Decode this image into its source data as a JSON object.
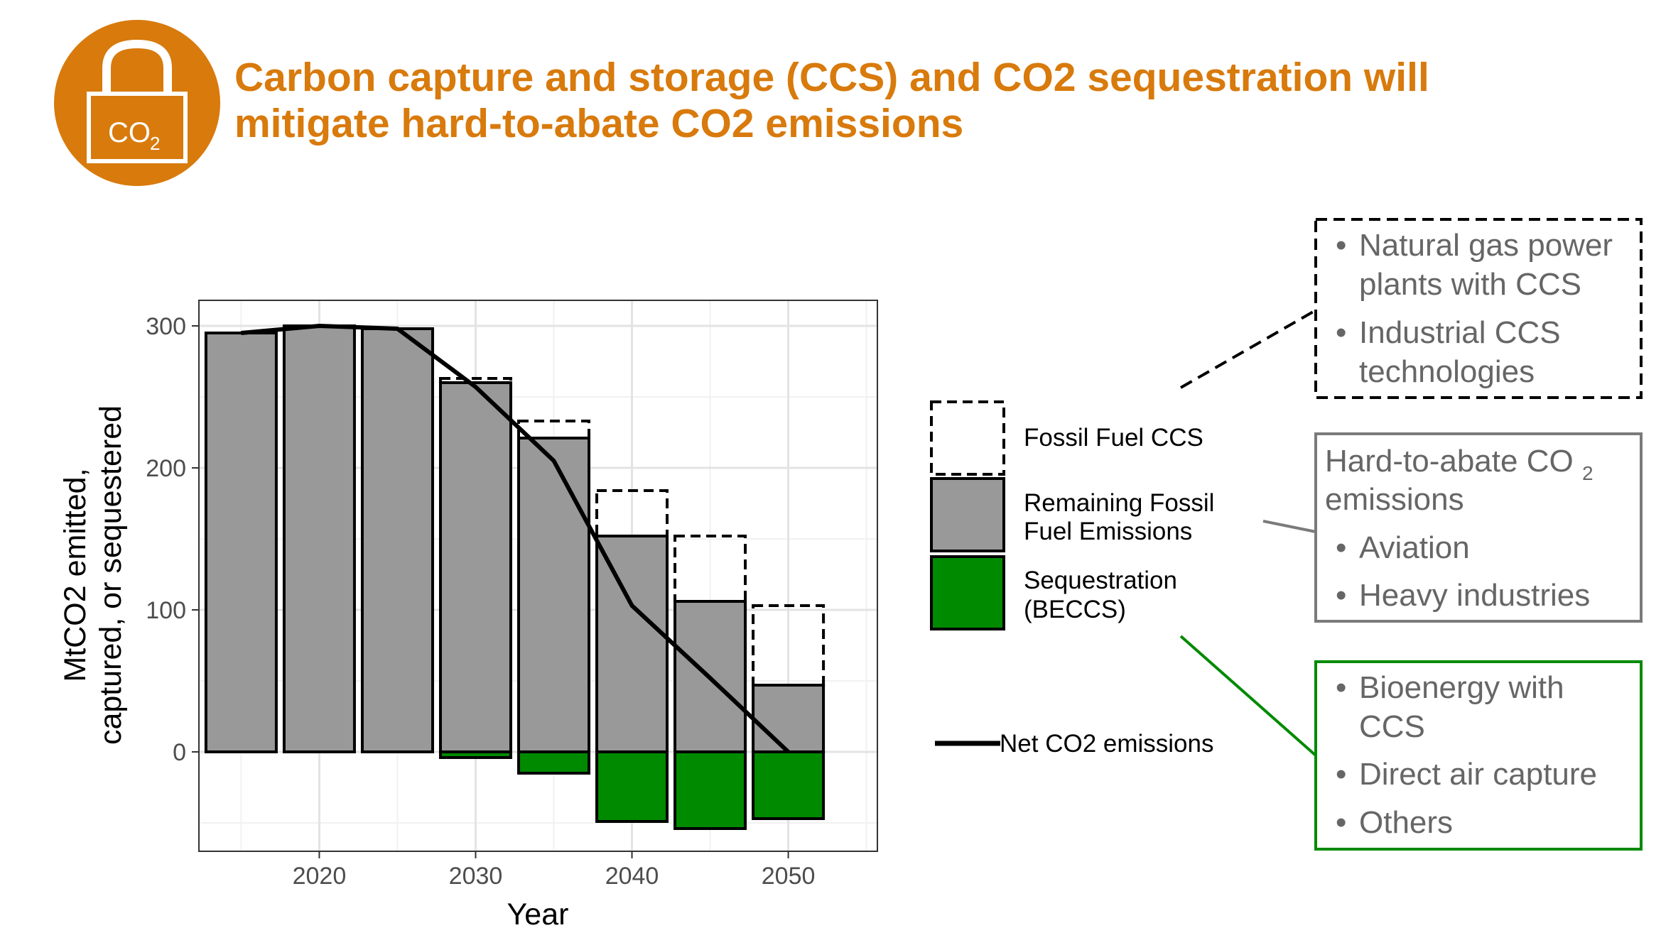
{
  "header": {
    "title_line1": "Carbon capture and storage (CCS) and CO2 sequestration will",
    "title_line2": "mitigate hard-to-abate CO2 emissions",
    "icon_label": "CO",
    "icon_subscript": "2",
    "icon_color": "#d87a0c"
  },
  "chart_data": {
    "type": "bar",
    "xlabel": "Year",
    "ylabel_line1": "MtCO2 emitted,",
    "ylabel_line2": "captured, or sequestered",
    "xlim": [
      2012.3,
      2055.7
    ],
    "ylim": [
      -70,
      318
    ],
    "x_ticks": [
      2020,
      2030,
      2040,
      2050
    ],
    "y_ticks": [
      0,
      100,
      200,
      300
    ],
    "grid": true,
    "x": [
      2015,
      2020,
      2025,
      2030,
      2035,
      2040,
      2045,
      2050
    ],
    "series": [
      {
        "name": "Fossil Fuel CCS",
        "values": [
          0,
          0,
          0,
          3,
          12,
          32,
          46,
          56
        ],
        "color": "none"
      },
      {
        "name": "Remaining Fossil Fuel Emissions",
        "values": [
          295,
          300,
          298,
          260,
          221,
          152,
          106,
          47
        ],
        "color": "#999999"
      },
      {
        "name": "Sequestration (BECCS)",
        "values": [
          0,
          0,
          0,
          -4,
          -15,
          -49,
          -54,
          -47
        ],
        "color": "#008a00"
      },
      {
        "name": "Net CO2 emissions",
        "values": [
          295,
          300,
          298,
          257,
          205,
          103,
          52,
          0
        ],
        "color": "#000000"
      }
    ]
  },
  "legend": {
    "ccs": "Fossil Fuel CCS",
    "remaining_line1": "Remaining Fossil",
    "remaining_line2": "Fuel Emissions",
    "seq_line1": "Sequestration",
    "seq_line2": "(BECCS)",
    "net": "Net CO2 emissions",
    "placement": "right"
  },
  "callouts": {
    "ccs_box": {
      "items": [
        {
          "line1": "Natural gas power",
          "line2": "plants with CCS"
        },
        {
          "line1": "Industrial CCS",
          "line2": "technologies"
        }
      ]
    },
    "hard_box": {
      "title_line1": "Hard-to-abate CO",
      "title_sub": "2",
      "title_line2": "emissions",
      "items": [
        "Aviation",
        "Heavy industries"
      ],
      "color": "#7a7a7a"
    },
    "seq_box": {
      "items": [
        {
          "line1": "Bioenergy with",
          "line2": "CCS"
        },
        {
          "line1": "Direct air capture",
          "line2": ""
        },
        {
          "line1": "Others",
          "line2": ""
        }
      ],
      "color": "#008a00"
    },
    "bullet": "•"
  }
}
